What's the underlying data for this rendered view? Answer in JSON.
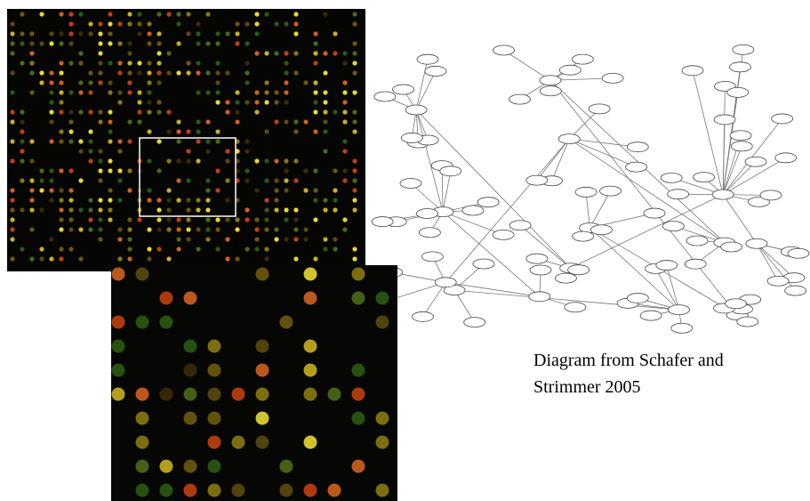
{
  "caption": [
    "Diagram from Schafer and",
    "Strimmer 2005"
  ]
}
